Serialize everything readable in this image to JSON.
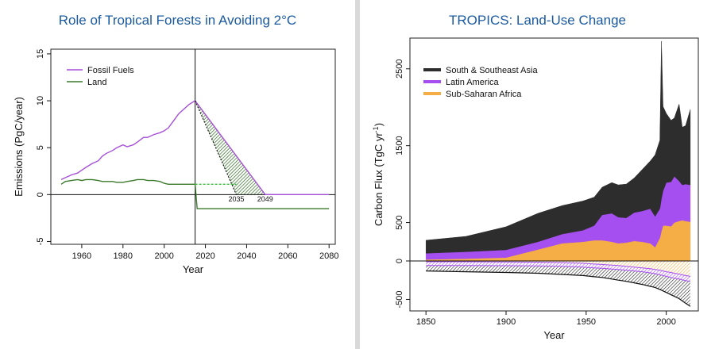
{
  "chart_data": [
    {
      "type": "line",
      "title": "Role of Tropical Forests in Avoiding 2°C",
      "xlabel": "Year",
      "ylabel": "Emissions (PgC/year)",
      "xlim": [
        1950,
        2080
      ],
      "ylim": [
        -5,
        15
      ],
      "xticks": [
        "1960",
        "1980",
        "2000",
        "2020",
        "2040",
        "2060",
        "2080"
      ],
      "yticks": [
        "-5",
        "0",
        "5",
        "10",
        "15"
      ],
      "legend_position": "top-left",
      "annotations": [
        "2035",
        "2049"
      ],
      "series": [
        {
          "name": "Fossil Fuels",
          "color": "#a64fd8",
          "x": [
            1950,
            1952,
            1955,
            1958,
            1960,
            1962,
            1965,
            1968,
            1970,
            1972,
            1975,
            1977,
            1980,
            1982,
            1985,
            1987,
            1990,
            1992,
            1995,
            1998,
            2000,
            2002,
            2005,
            2007,
            2010,
            2012,
            2015
          ],
          "y": [
            1.6,
            1.8,
            2.1,
            2.3,
            2.6,
            2.9,
            3.3,
            3.6,
            4.1,
            4.4,
            4.7,
            5.0,
            5.3,
            5.1,
            5.3,
            5.6,
            6.1,
            6.1,
            6.4,
            6.6,
            6.8,
            7.1,
            8.0,
            8.6,
            9.2,
            9.6,
            10.0
          ]
        },
        {
          "name": "Land",
          "color": "#3a7a2a",
          "x": [
            1950,
            1952,
            1955,
            1958,
            1960,
            1962,
            1965,
            1968,
            1970,
            1972,
            1975,
            1977,
            1980,
            1982,
            1985,
            1987,
            1990,
            1992,
            1995,
            1998,
            2000,
            2002,
            2005,
            2008,
            2010,
            2012,
            2015
          ],
          "y": [
            1.1,
            1.4,
            1.5,
            1.6,
            1.5,
            1.6,
            1.6,
            1.5,
            1.4,
            1.4,
            1.4,
            1.3,
            1.3,
            1.4,
            1.5,
            1.6,
            1.6,
            1.5,
            1.5,
            1.4,
            1.2,
            1.1,
            1.1,
            1.1,
            1.1,
            1.1,
            1.1
          ]
        }
      ],
      "scenario": {
        "fossil_decline": [
          [
            2015,
            10.0
          ],
          [
            2049,
            0
          ],
          [
            2080,
            0
          ]
        ],
        "land_drop": [
          [
            2015,
            1.1
          ],
          [
            2016,
            -1.5
          ],
          [
            2080,
            -1.5
          ]
        ],
        "land_continued": [
          [
            2015,
            1.1
          ],
          [
            2035,
            1.1
          ]
        ],
        "alt_decline": [
          [
            2015,
            10.0
          ],
          [
            2035,
            0
          ]
        ],
        "vertical_marker_year": 2015
      }
    },
    {
      "type": "area",
      "title": "TROPICS: Land-Use Change",
      "xlabel": "Year",
      "ylabel": "Carbon Flux (TgC yr",
      "ylabel_superscript": "-1",
      "ylabel_suffix": ")",
      "xlim": [
        1840,
        2020
      ],
      "ylim": [
        -650,
        2900
      ],
      "xticks": [
        "1850",
        "1900",
        "1950",
        "2000"
      ],
      "yticks": [
        "-500",
        "0",
        "500",
        "1500",
        "2500"
      ],
      "legend_position": "top-left",
      "x": [
        1850,
        1875,
        1900,
        1920,
        1935,
        1948,
        1955,
        1960,
        1963,
        1966,
        1970,
        1975,
        1980,
        1985,
        1990,
        1993,
        1996,
        1997,
        1998,
        2000,
        2003,
        2005,
        2008,
        2010,
        2012,
        2015
      ],
      "series": [
        {
          "name": "Sub-Saharan Africa",
          "color": "#f5ad45",
          "values": [
            20,
            30,
            45,
            150,
            230,
            250,
            270,
            270,
            260,
            250,
            230,
            240,
            260,
            250,
            230,
            180,
            300,
            390,
            460,
            460,
            450,
            500,
            520,
            530,
            520,
            510
          ]
        },
        {
          "name": "Latin America",
          "color": "#a64ff0",
          "values": [
            80,
            90,
            100,
            100,
            120,
            150,
            190,
            330,
            350,
            370,
            340,
            320,
            370,
            400,
            450,
            400,
            380,
            420,
            450,
            560,
            580,
            600,
            520,
            460,
            480,
            480
          ]
        },
        {
          "name": "South & Southeast Asia",
          "color": "#2d2d2d",
          "values": [
            170,
            200,
            300,
            370,
            370,
            380,
            370,
            360,
            380,
            400,
            420,
            440,
            450,
            540,
            620,
            800,
            890,
            2050,
            1100,
            900,
            800,
            760,
            1000,
            750,
            760,
            980
          ]
        }
      ],
      "negative_band": {
        "upper": [
          -10,
          -10,
          -12,
          -15,
          -20,
          -30,
          -40,
          -45,
          -50,
          -55,
          -60,
          -70,
          -80,
          -90,
          -100,
          -110,
          -120,
          -125,
          -130,
          -140,
          -150,
          -160,
          -170,
          -180,
          -190,
          -200
        ],
        "latin_lower": [
          -60,
          -60,
          -62,
          -65,
          -70,
          -80,
          -90,
          -95,
          -100,
          -105,
          -110,
          -120,
          -130,
          -140,
          -155,
          -165,
          -180,
          -185,
          -190,
          -200,
          -215,
          -225,
          -235,
          -245,
          -255,
          -265
        ],
        "lower": [
          -130,
          -140,
          -150,
          -160,
          -175,
          -190,
          -205,
          -215,
          -225,
          -235,
          -250,
          -265,
          -285,
          -305,
          -330,
          -345,
          -370,
          -380,
          -390,
          -410,
          -440,
          -460,
          -490,
          -520,
          -550,
          -590
        ]
      }
    }
  ]
}
